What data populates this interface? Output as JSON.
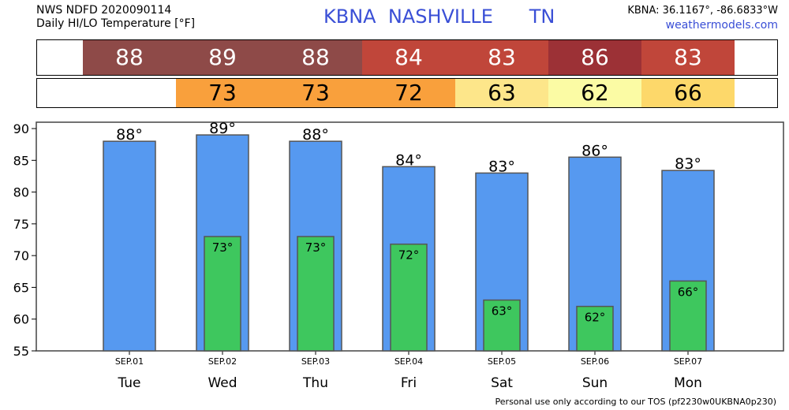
{
  "header": {
    "left_line1": "NWS NDFD 2020090114",
    "left_line2": "Daily HI/LO Temperature [°F]",
    "station_code": "KBNA",
    "station_city": "NASHVILLE",
    "station_state": "TN",
    "coords": "KBNA: 36.1167°, -86.6833°W",
    "site": "weathermodels.com"
  },
  "hi_strip": [
    {
      "value": "88",
      "color": "#8e4a48"
    },
    {
      "value": "89",
      "color": "#8e4a48"
    },
    {
      "value": "88",
      "color": "#8e4a48"
    },
    {
      "value": "84",
      "color": "#c0463a"
    },
    {
      "value": "83",
      "color": "#c0463a"
    },
    {
      "value": "86",
      "color": "#9c3136"
    },
    {
      "value": "83",
      "color": "#c0463a"
    }
  ],
  "lo_strip": [
    {
      "value": "",
      "color": "#ffffff"
    },
    {
      "value": "73",
      "color": "#f9a03c"
    },
    {
      "value": "73",
      "color": "#f9a03c"
    },
    {
      "value": "72",
      "color": "#f9a03c"
    },
    {
      "value": "63",
      "color": "#fde68a"
    },
    {
      "value": "62",
      "color": "#fbfba4"
    },
    {
      "value": "66",
      "color": "#fdd86a"
    }
  ],
  "chart_data": {
    "type": "bar",
    "categories": [
      "SEP.01",
      "SEP.02",
      "SEP.03",
      "SEP.04",
      "SEP.05",
      "SEP.06",
      "SEP.07"
    ],
    "days": [
      "Tue",
      "Wed",
      "Thu",
      "Fri",
      "Sat",
      "Sun",
      "Mon"
    ],
    "series": [
      {
        "values": [
          88,
          89,
          88,
          84,
          83,
          85.5,
          83.4
        ],
        "labels": [
          "88°",
          "89°",
          "88°",
          "84°",
          "83°",
          "86°",
          "83°"
        ],
        "color": "#5699f0"
      },
      {
        "values": [
          null,
          73,
          73,
          71.8,
          63,
          62,
          66
        ],
        "labels": [
          "",
          "73°",
          "73°",
          "72°",
          "63°",
          "62°",
          "66°"
        ],
        "color": "#3ec75e"
      }
    ],
    "yticks": [
      55,
      60,
      65,
      70,
      75,
      80,
      85,
      90
    ],
    "ylim": [
      55,
      91
    ],
    "grid": false
  },
  "footer": "Personal use only according to our TOS (pf2230w0UKBNA0p230)"
}
